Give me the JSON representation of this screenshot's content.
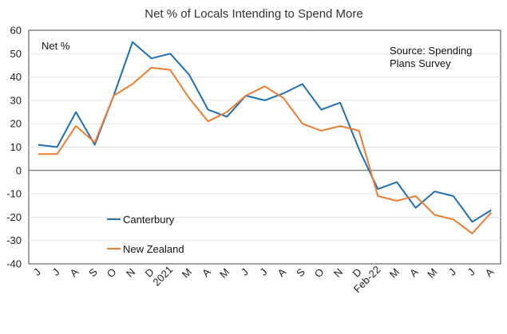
{
  "chart_data": {
    "type": "line",
    "title": "Net % of Locals Intending to Spend More",
    "ylabel": "Net %",
    "annotation_line1": "Source: Spending",
    "annotation_line2": "Plans Survey",
    "ylim": [
      -40,
      60
    ],
    "yticks": [
      -40,
      -30,
      -20,
      -10,
      0,
      10,
      20,
      30,
      40,
      50,
      60
    ],
    "grid": true,
    "legend_placement": "bottom-left",
    "categories": [
      "J",
      "J",
      "A",
      "S",
      "O",
      "N",
      "D",
      "2021",
      "M",
      "A",
      "M",
      "J",
      "J",
      "A",
      "S",
      "O",
      "N",
      "D",
      "Feb-22",
      "M",
      "A",
      "M",
      "J",
      "J",
      "A"
    ],
    "rotated_labels": [
      "2021",
      "Feb-22"
    ],
    "series": [
      {
        "name": "Canterbury",
        "color": "#1f6fb5",
        "values": [
          11,
          10,
          25,
          11,
          32,
          55,
          48,
          50,
          41,
          26,
          23,
          32,
          30,
          33,
          37,
          26,
          29,
          9,
          -8,
          -5,
          -16,
          -9,
          -11,
          -22,
          -17
        ]
      },
      {
        "name": "New Zealand",
        "color": "#ed7d31",
        "values": [
          7,
          7,
          19,
          12,
          32,
          37,
          44,
          43,
          31,
          21,
          25,
          32,
          36,
          31,
          20,
          17,
          19,
          17,
          -11,
          -13,
          -11,
          -19,
          -21,
          -27,
          -18
        ]
      }
    ]
  }
}
